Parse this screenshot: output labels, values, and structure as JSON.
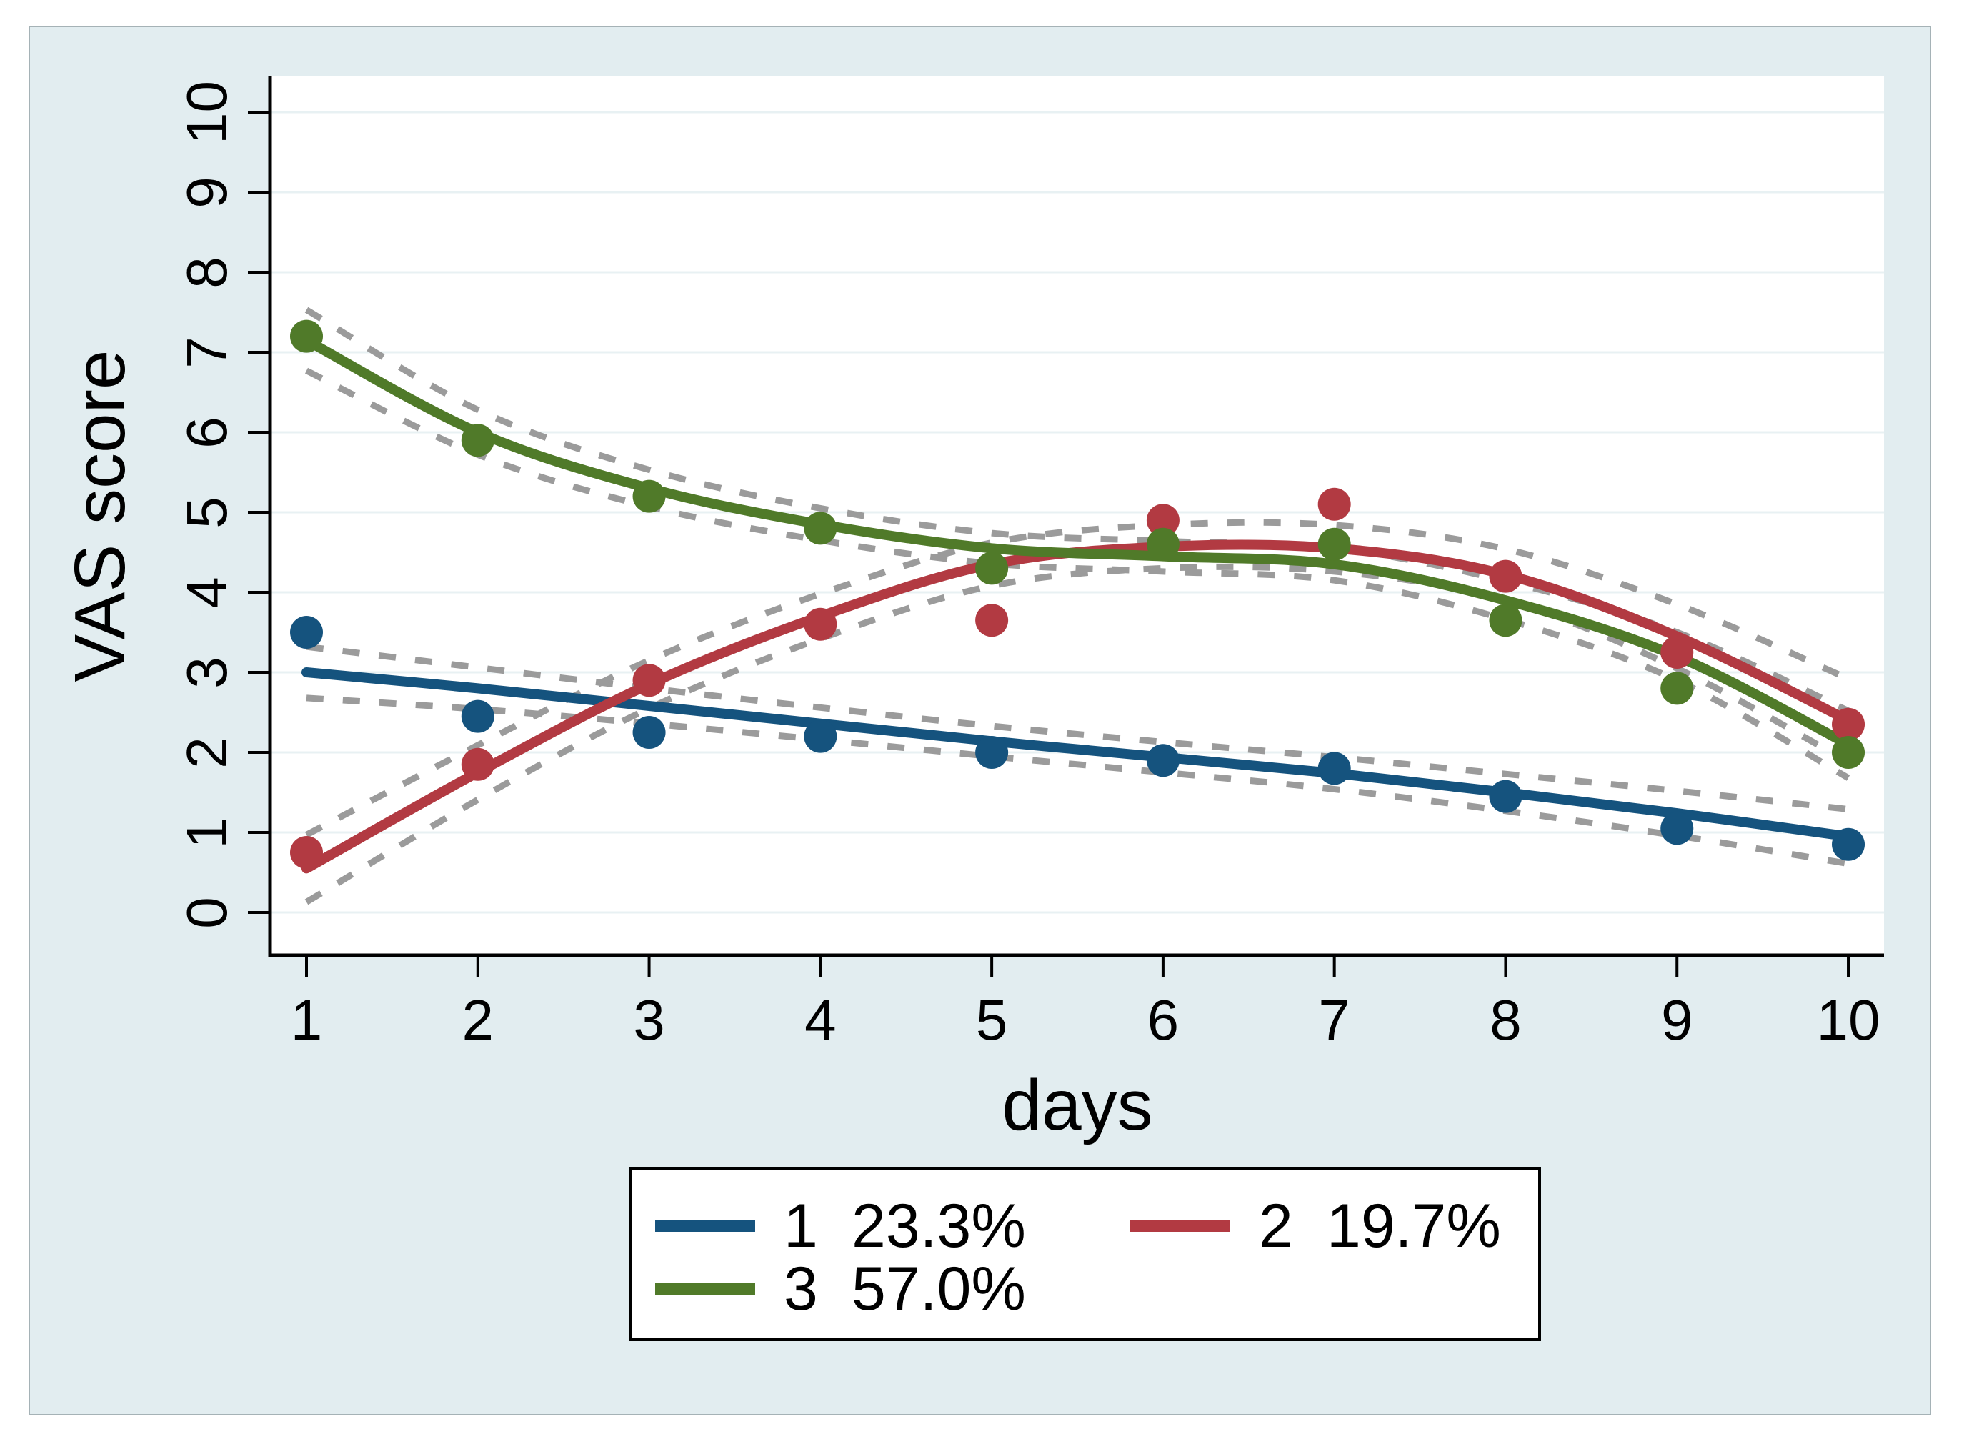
{
  "figure": {
    "background": "#ffffff",
    "panel_bg": "#e2edf0",
    "panel_border": "#a5b2b6",
    "plot_bg": "#ffffff",
    "grid_color": "#e8f1f3",
    "axis_color": "#000000",
    "ci_color": "#9b9b9b",
    "text_color": "#000000"
  },
  "chart_data": {
    "type": "scatter",
    "subtype": "grouped trajectories with fitted curves and dashed confidence bands",
    "xlabel": "days",
    "ylabel": "VAS score",
    "x": [
      1,
      2,
      3,
      4,
      5,
      6,
      7,
      8,
      9,
      10
    ],
    "xticks": [
      "1",
      "2",
      "3",
      "4",
      "5",
      "6",
      "7",
      "8",
      "9",
      "10"
    ],
    "yticks": [
      "0",
      "1",
      "2",
      "3",
      "4",
      "5",
      "6",
      "7",
      "8",
      "9",
      "10"
    ],
    "ylim": [
      0,
      10
    ],
    "xlim": [
      1,
      10
    ],
    "grid": "horizontal",
    "legend_position": "below",
    "series": [
      {
        "name": "1",
        "percent": "23.3%",
        "color": "#15537e",
        "points": [
          3.5,
          2.45,
          2.25,
          2.2,
          2.0,
          1.9,
          1.8,
          1.45,
          1.05,
          0.85
        ],
        "fitted": [
          3.0,
          2.8,
          2.58,
          2.36,
          2.14,
          1.94,
          1.74,
          1.5,
          1.24,
          0.95
        ],
        "ci_halfwidth": [
          0.32,
          0.26,
          0.22,
          0.2,
          0.19,
          0.19,
          0.2,
          0.23,
          0.28,
          0.34
        ]
      },
      {
        "name": "2",
        "percent": "19.7%",
        "color": "#b23a42",
        "points": [
          0.75,
          1.85,
          2.9,
          3.6,
          3.65,
          4.9,
          5.1,
          4.2,
          3.25,
          2.35
        ],
        "fitted": [
          0.55,
          1.75,
          2.85,
          3.7,
          4.35,
          4.57,
          4.55,
          4.22,
          3.45,
          2.4
        ],
        "ci_halfwidth": [
          0.42,
          0.34,
          0.3,
          0.28,
          0.27,
          0.27,
          0.29,
          0.32,
          0.4,
          0.52
        ]
      },
      {
        "name": "3",
        "percent": "57.0%",
        "color": "#507a29",
        "points": [
          7.2,
          5.9,
          5.2,
          4.8,
          4.3,
          4.6,
          4.6,
          3.65,
          2.8,
          2.0
        ],
        "fitted": [
          7.15,
          6.0,
          5.3,
          4.85,
          4.55,
          4.45,
          4.35,
          3.9,
          3.2,
          2.1
        ],
        "ci_halfwidth": [
          0.38,
          0.28,
          0.23,
          0.2,
          0.19,
          0.19,
          0.2,
          0.24,
          0.3,
          0.42
        ]
      }
    ]
  },
  "legend": {
    "rows": [
      [
        "series-1",
        "series-2"
      ],
      [
        "series-3"
      ]
    ]
  }
}
